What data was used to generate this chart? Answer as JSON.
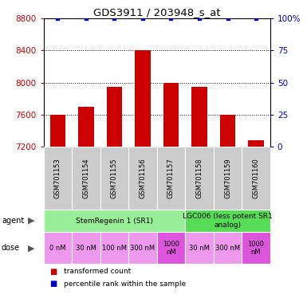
{
  "title": "GDS3911 / 203948_s_at",
  "samples": [
    "GSM701153",
    "GSM701154",
    "GSM701155",
    "GSM701156",
    "GSM701157",
    "GSM701158",
    "GSM701159",
    "GSM701160"
  ],
  "bar_values": [
    7600,
    7700,
    7950,
    8400,
    8000,
    7950,
    7600,
    7280
  ],
  "percentile_values": [
    100,
    100,
    100,
    100,
    100,
    100,
    100,
    100
  ],
  "ylim_left": [
    7200,
    8800
  ],
  "ylim_right": [
    0,
    100
  ],
  "yticks_left": [
    7200,
    7600,
    8000,
    8400,
    8800
  ],
  "yticks_right": [
    0,
    25,
    50,
    75,
    100
  ],
  "bar_color": "#cc0000",
  "percentile_color": "#0000cc",
  "agent_rows": [
    {
      "label": "StemRegenin 1 (SR1)",
      "start": 0,
      "end": 5,
      "color": "#99ee99"
    },
    {
      "label": "LGC006 (less potent SR1\nanalog)",
      "start": 5,
      "end": 8,
      "color": "#55dd55"
    }
  ],
  "dose_rows": [
    {
      "label": "0 nM",
      "start": 0,
      "end": 1,
      "color": "#ee99ee"
    },
    {
      "label": "30 nM",
      "start": 1,
      "end": 2,
      "color": "#ee99ee"
    },
    {
      "label": "100 nM",
      "start": 2,
      "end": 3,
      "color": "#ee99ee"
    },
    {
      "label": "300 nM",
      "start": 3,
      "end": 4,
      "color": "#ee99ee"
    },
    {
      "label": "1000\nnM",
      "start": 4,
      "end": 5,
      "color": "#dd55dd"
    },
    {
      "label": "30 nM",
      "start": 5,
      "end": 6,
      "color": "#ee99ee"
    },
    {
      "label": "300 nM",
      "start": 6,
      "end": 7,
      "color": "#ee99ee"
    },
    {
      "label": "1000\nnM",
      "start": 7,
      "end": 8,
      "color": "#dd55dd"
    }
  ],
  "legend_items": [
    {
      "label": "transformed count",
      "color": "#cc0000"
    },
    {
      "label": "percentile rank within the sample",
      "color": "#0000cc"
    }
  ],
  "bg_color": "#ffffff",
  "sample_box_color": "#cccccc",
  "left_label_color": "#555555"
}
